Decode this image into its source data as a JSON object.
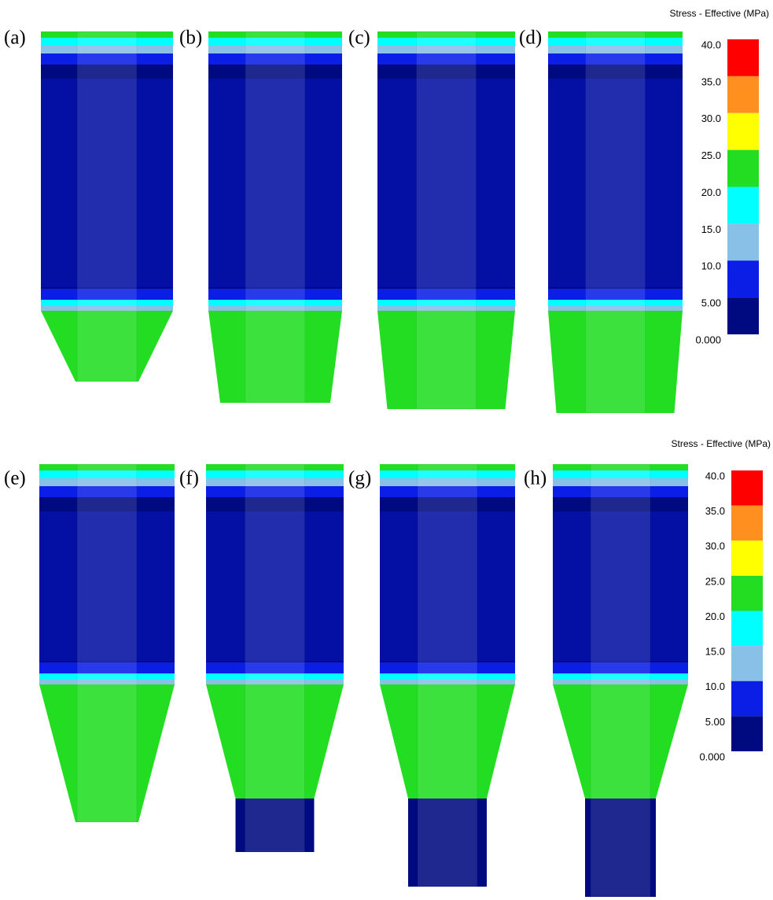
{
  "panels": [
    "(a)",
    "(b)",
    "(c)",
    "(d)",
    "(e)",
    "(f)",
    "(g)",
    "(h)"
  ],
  "legends": [
    {
      "title": "Stress - Effective (MPa)",
      "ticks": [
        {
          "value": 40,
          "label": "40.0"
        },
        {
          "value": 35,
          "label": "35.0"
        },
        {
          "value": 30,
          "label": "30.0"
        },
        {
          "value": 25,
          "label": "25.0"
        },
        {
          "value": 20,
          "label": "20.0"
        },
        {
          "value": 15,
          "label": "15.0"
        },
        {
          "value": 10,
          "label": "10.0"
        },
        {
          "value": 5,
          "label": "5.00"
        },
        {
          "value": 0,
          "label": "0.000"
        }
      ]
    },
    {
      "title": "Stress - Effective (MPa)",
      "ticks": [
        {
          "value": 40,
          "label": "40.0"
        },
        {
          "value": 35,
          "label": "35.0"
        },
        {
          "value": 30,
          "label": "30.0"
        },
        {
          "value": 25,
          "label": "25.0"
        },
        {
          "value": 20,
          "label": "20.0"
        },
        {
          "value": 15,
          "label": "15.0"
        },
        {
          "value": 10,
          "label": "10.0"
        },
        {
          "value": 5,
          "label": "5.00"
        },
        {
          "value": 0,
          "label": "0.000"
        }
      ]
    }
  ],
  "colors": [
    "#ff0000",
    "#ff9020",
    "#ffff00",
    "#22dd22",
    "#00ffff",
    "#88c0e8",
    "#0a1ee6",
    "#000a80"
  ]
}
